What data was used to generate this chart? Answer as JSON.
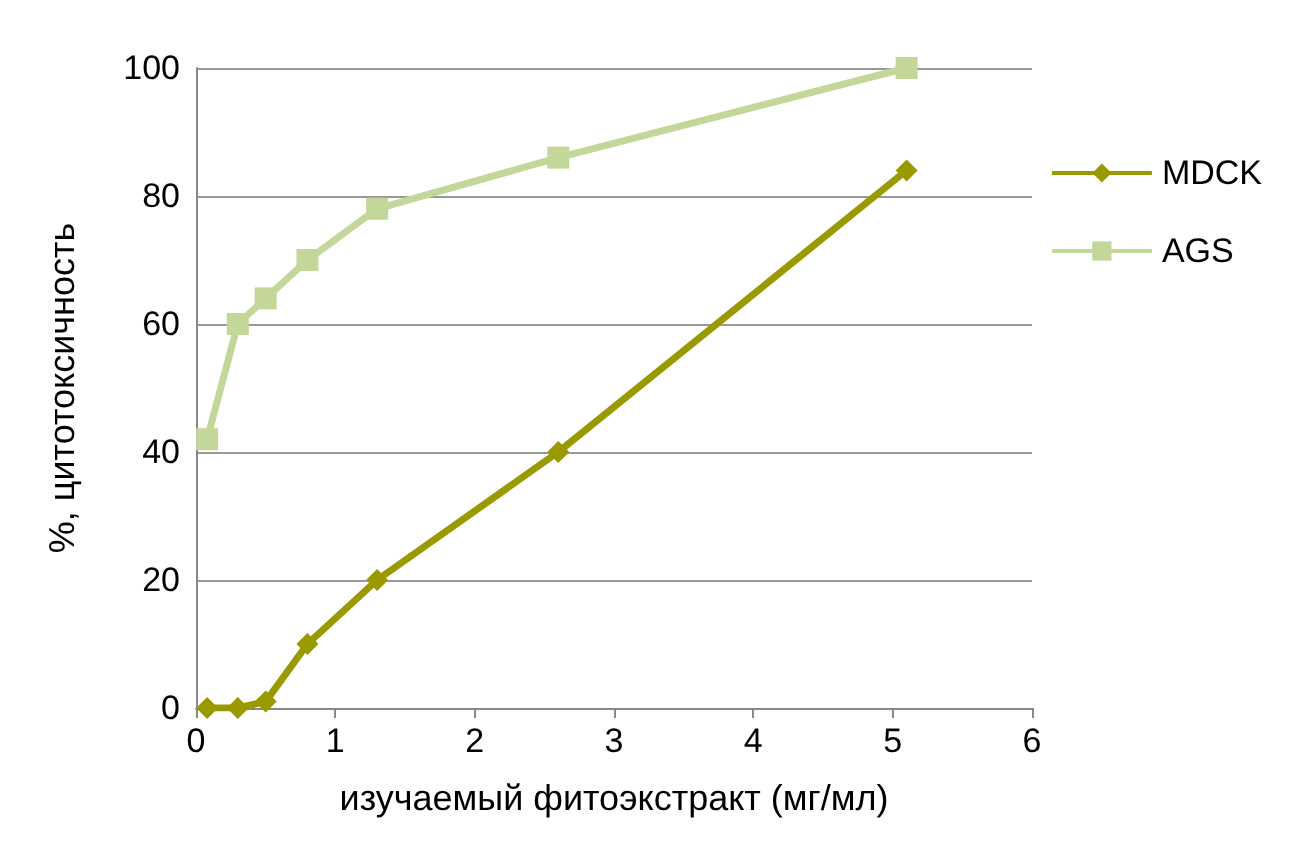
{
  "chart_data": {
    "type": "line",
    "xlabel": "изучаемый фитоэкстракт (мг/мл)",
    "ylabel": "%, цитотоксичность",
    "xlim": [
      0,
      6
    ],
    "xticks": [
      0,
      1,
      2,
      3,
      4,
      5,
      6
    ],
    "ylim": [
      0,
      100
    ],
    "yticks": [
      0,
      20,
      40,
      60,
      80,
      100
    ],
    "grid": "y",
    "legend": "right",
    "line_style": "solid",
    "series": [
      {
        "name": "MDCK",
        "color": "#999900",
        "marker": "diamond",
        "x": [
          0.08,
          0.3,
          0.5,
          0.8,
          1.3,
          2.6,
          5.1
        ],
        "values": [
          0,
          0,
          1,
          10,
          20,
          40,
          84
        ]
      },
      {
        "name": "AGS",
        "color": "#c4d79b",
        "marker": "square",
        "x": [
          0.08,
          0.3,
          0.5,
          0.8,
          1.3,
          2.6,
          5.1
        ],
        "values": [
          42,
          60,
          64,
          70,
          78,
          86,
          100
        ]
      }
    ]
  }
}
